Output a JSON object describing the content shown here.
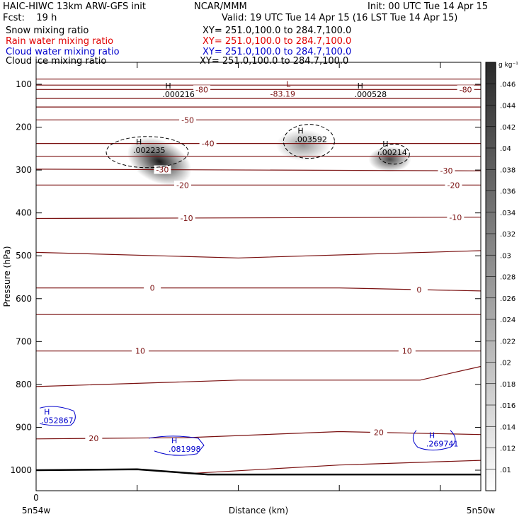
{
  "header": {
    "model": "HAIC-HIWC 13km ARW-GFS init",
    "org": "NCAR/MMM",
    "init": "Init: 00 UTC Tue 14 Apr 15",
    "fcst": "Fcst:    19 h",
    "valid": "Valid: 19 UTC Tue 14 Apr 15 (16 LST Tue 14 Apr 15)"
  },
  "fields": [
    {
      "name": "Snow mixing ratio",
      "xy": "XY= 251.0,100.0 to 284.7,100.0",
      "color": "#000000"
    },
    {
      "name": "Rain water mixing ratio",
      "xy": "XY= 251.0,100.0 to 284.7,100.0",
      "color": "#e00000"
    },
    {
      "name": "Cloud water mixing ratio",
      "xy": "XY= 251.0,100.0 to 284.7,100.0",
      "color": "#0000cc"
    },
    {
      "name": "Cloud ice mixing ratio",
      "xy": "XY= 251.0,100.0 to 284.7,100.0",
      "color": "#000000"
    }
  ],
  "chart_data": {
    "type": "contour",
    "xlabel": "Distance (km)",
    "ylabel": "Pressure (hPa)",
    "x_ticks": [
      {
        "label": "0",
        "km": 0
      },
      {
        "label": "",
        "km": 100
      },
      {
        "label": "",
        "km": 200
      },
      {
        "label": "",
        "km": 300
      },
      {
        "label": "",
        "km": 400
      }
    ],
    "xlim": [
      0,
      440
    ],
    "x_end_labels": {
      "left": "5n54w",
      "right": "5n50w"
    },
    "ylim": [
      50,
      1050
    ],
    "y_ticks": [
      100,
      200,
      300,
      400,
      500,
      600,
      700,
      800,
      900,
      1000
    ],
    "colorbar": {
      "unit": "g kg⁻¹",
      "levels": [
        0.01,
        0.012,
        0.014,
        0.016,
        0.018,
        0.02,
        0.022,
        0.024,
        0.026,
        0.028,
        0.03,
        0.032,
        0.034,
        0.036,
        0.038,
        0.04,
        0.042,
        0.044,
        0.046
      ],
      "labels": [
        ".01",
        ".012",
        ".014",
        ".016",
        ".018",
        ".02",
        ".022",
        ".024",
        ".026",
        ".028",
        ".03",
        ".032",
        ".034",
        ".036",
        ".038",
        ".04",
        ".042",
        ".044",
        ".046"
      ],
      "color_low": "#ffffff",
      "color_high": "#2a2a2a"
    },
    "temperature_contours": {
      "color": "#7a1010",
      "lines": [
        {
          "level": "",
          "points": [
            [
              0,
              88
            ],
            [
              440,
              88
            ]
          ]
        },
        {
          "level": "",
          "points": [
            [
              0,
              102
            ],
            [
              440,
              102
            ]
          ]
        },
        {
          "level": "-80",
          "points": [
            [
              0,
              112
            ],
            [
              440,
              112
            ]
          ],
          "label_km": [
            164,
            425
          ]
        },
        {
          "level": "",
          "points": [
            [
              0,
              133
            ],
            [
              440,
              133
            ]
          ]
        },
        {
          "level": "",
          "points": [
            [
              0,
              153
            ],
            [
              440,
              153
            ]
          ]
        },
        {
          "level": "-50",
          "points": [
            [
              0,
              183
            ],
            [
              440,
              183
            ]
          ],
          "label_km": [
            150
          ]
        },
        {
          "level": "-40",
          "points": [
            [
              0,
              238
            ],
            [
              440,
              238
            ]
          ],
          "label_km": [
            170
          ]
        },
        {
          "level": "",
          "points": [
            [
              0,
              268
            ],
            [
              440,
              268
            ]
          ]
        },
        {
          "level": "-30",
          "points": [
            [
              0,
              298
            ],
            [
              440,
              302
            ]
          ],
          "label_km": [
            125,
            406
          ]
        },
        {
          "level": "-20",
          "points": [
            [
              0,
              335
            ],
            [
              440,
              335
            ]
          ],
          "label_km": [
            145,
            413
          ]
        },
        {
          "level": "-10",
          "points": [
            [
              0,
              413
            ],
            [
              440,
              410
            ]
          ],
          "label_km": [
            149,
            415
          ]
        },
        {
          "level": "",
          "points": [
            [
              0,
              492
            ],
            [
              200,
              505
            ],
            [
              440,
              488
            ]
          ]
        },
        {
          "level": "0",
          "points": [
            [
              0,
              575
            ],
            [
              300,
              575
            ],
            [
              440,
              582
            ]
          ],
          "label_km": [
            115,
            379
          ]
        },
        {
          "level": "",
          "points": [
            [
              0,
              637
            ],
            [
              440,
              637
            ]
          ]
        },
        {
          "level": "10",
          "points": [
            [
              0,
              722
            ],
            [
              440,
              722
            ]
          ],
          "label_km": [
            103,
            367
          ]
        },
        {
          "level": "",
          "points": [
            [
              0,
              805
            ],
            [
              200,
              790
            ],
            [
              380,
              790
            ],
            [
              440,
              758
            ]
          ]
        },
        {
          "level": "20",
          "points": [
            [
              0,
              927
            ],
            [
              150,
              924
            ],
            [
              300,
              910
            ],
            [
              440,
              917
            ]
          ],
          "label_km": [
            57,
            339
          ]
        },
        {
          "level": "",
          "points": [
            [
              150,
              1008
            ],
            [
              300,
              988
            ],
            [
              440,
              977
            ]
          ]
        }
      ],
      "min_label": {
        "symbol": "L",
        "value": "-83.19",
        "km": 244,
        "hPa": 112
      }
    },
    "cloud_ice_maxima": [
      {
        "value": ".000216",
        "km": 125,
        "hPa": 115
      },
      {
        "value": ".000528",
        "km": 315,
        "hPa": 115
      },
      {
        "value": ".002235",
        "km": 96,
        "hPa": 245
      },
      {
        "value": ".003592",
        "km": 256,
        "hPa": 220
      },
      {
        "value": ".00214",
        "km": 340,
        "hPa": 250
      }
    ],
    "cloud_ice_shading": [
      {
        "km": 122,
        "hPa": 280,
        "value": 0.046
      },
      {
        "km": 264,
        "hPa": 242,
        "value": 0.018
      },
      {
        "km": 350,
        "hPa": 275,
        "value": 0.03
      }
    ],
    "cloud_water_maxima": [
      {
        "value": ".052867",
        "km": 5,
        "hPa": 875
      },
      {
        "value": ".081998",
        "km": 131,
        "hPa": 942
      },
      {
        "value": ".269741",
        "km": 386,
        "hPa": 930
      }
    ],
    "ground_line": {
      "points": [
        [
          0,
          1000
        ],
        [
          100,
          998
        ],
        [
          170,
          1010
        ],
        [
          440,
          1010
        ]
      ]
    }
  }
}
